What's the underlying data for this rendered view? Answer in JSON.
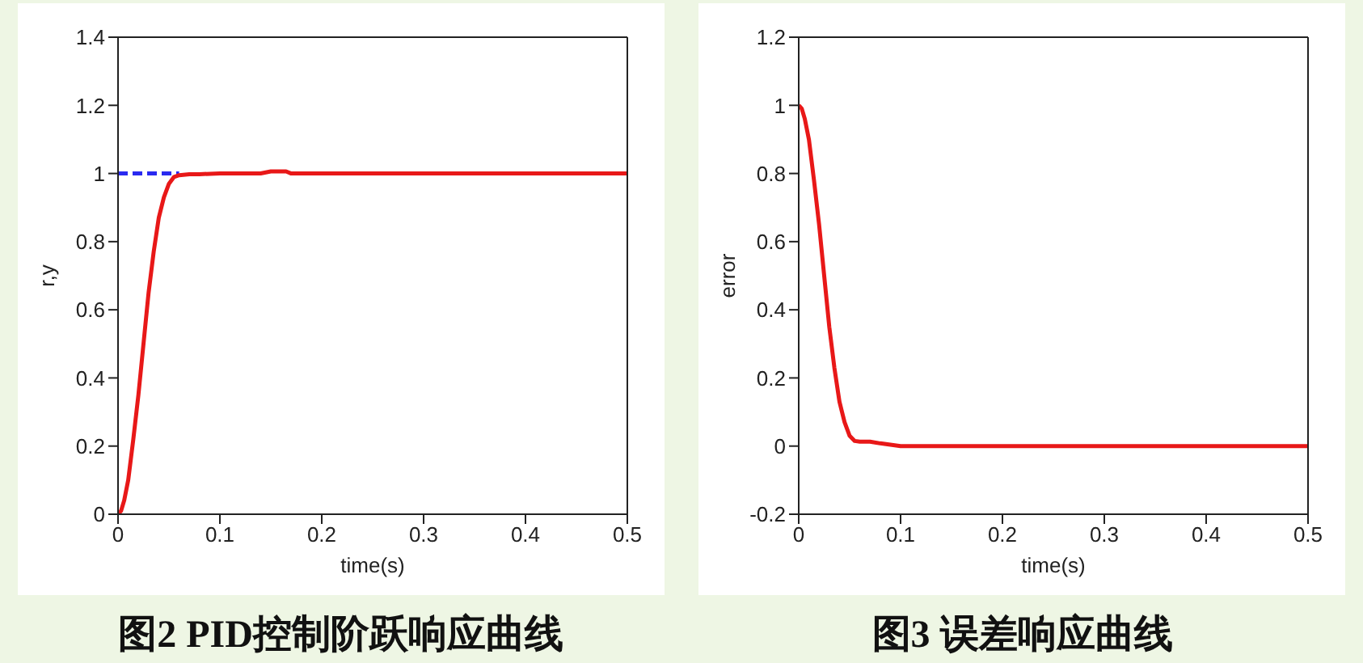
{
  "chart_data": [
    {
      "type": "line",
      "title": "图2 PID控制阶跃响应曲线",
      "xlabel": "time(s)",
      "ylabel": "r,y",
      "xlim": [
        0,
        0.5
      ],
      "xticks": [
        0,
        0.1,
        0.2,
        0.3,
        0.4,
        0.5
      ],
      "ylim": [
        0,
        1.4
      ],
      "yticks": [
        0,
        0.2,
        0.4,
        0.6,
        0.8,
        1,
        1.2,
        1.4
      ],
      "marker": "none",
      "series": [
        {
          "color": "#2a2af0",
          "line_style": "dashed",
          "x": [
            0,
            0.06
          ],
          "values": [
            1,
            1
          ]
        },
        {
          "color": "#e81818",
          "line_style": "solid",
          "x": [
            0,
            0.003,
            0.006,
            0.01,
            0.015,
            0.02,
            0.025,
            0.03,
            0.035,
            0.04,
            0.045,
            0.05,
            0.055,
            0.06,
            0.07,
            0.08,
            0.1,
            0.14,
            0.15,
            0.165,
            0.17,
            0.2,
            0.5
          ],
          "values": [
            0,
            0.01,
            0.04,
            0.1,
            0.22,
            0.35,
            0.5,
            0.65,
            0.77,
            0.87,
            0.93,
            0.97,
            0.99,
            0.995,
            0.998,
            0.998,
            1,
            1,
            1.006,
            1.006,
            1,
            1,
            1
          ]
        }
      ]
    },
    {
      "type": "line",
      "title": "图3 误差响应曲线",
      "xlabel": "time(s)",
      "ylabel": "error",
      "xlim": [
        0,
        0.5
      ],
      "xticks": [
        0,
        0.1,
        0.2,
        0.3,
        0.4,
        0.5
      ],
      "ylim": [
        -0.2,
        1.2
      ],
      "yticks": [
        -0.2,
        0,
        0.2,
        0.4,
        0.6,
        0.8,
        1,
        1.2
      ],
      "marker": "none",
      "series": [
        {
          "color": "#e81818",
          "line_style": "solid",
          "x": [
            0,
            0.003,
            0.006,
            0.01,
            0.015,
            0.02,
            0.025,
            0.03,
            0.035,
            0.04,
            0.045,
            0.05,
            0.055,
            0.06,
            0.07,
            0.08,
            0.1,
            0.2,
            0.5
          ],
          "values": [
            1,
            0.99,
            0.96,
            0.9,
            0.78,
            0.65,
            0.5,
            0.35,
            0.23,
            0.13,
            0.07,
            0.03,
            0.015,
            0.013,
            0.013,
            0.008,
            0,
            0,
            0
          ]
        }
      ]
    }
  ]
}
